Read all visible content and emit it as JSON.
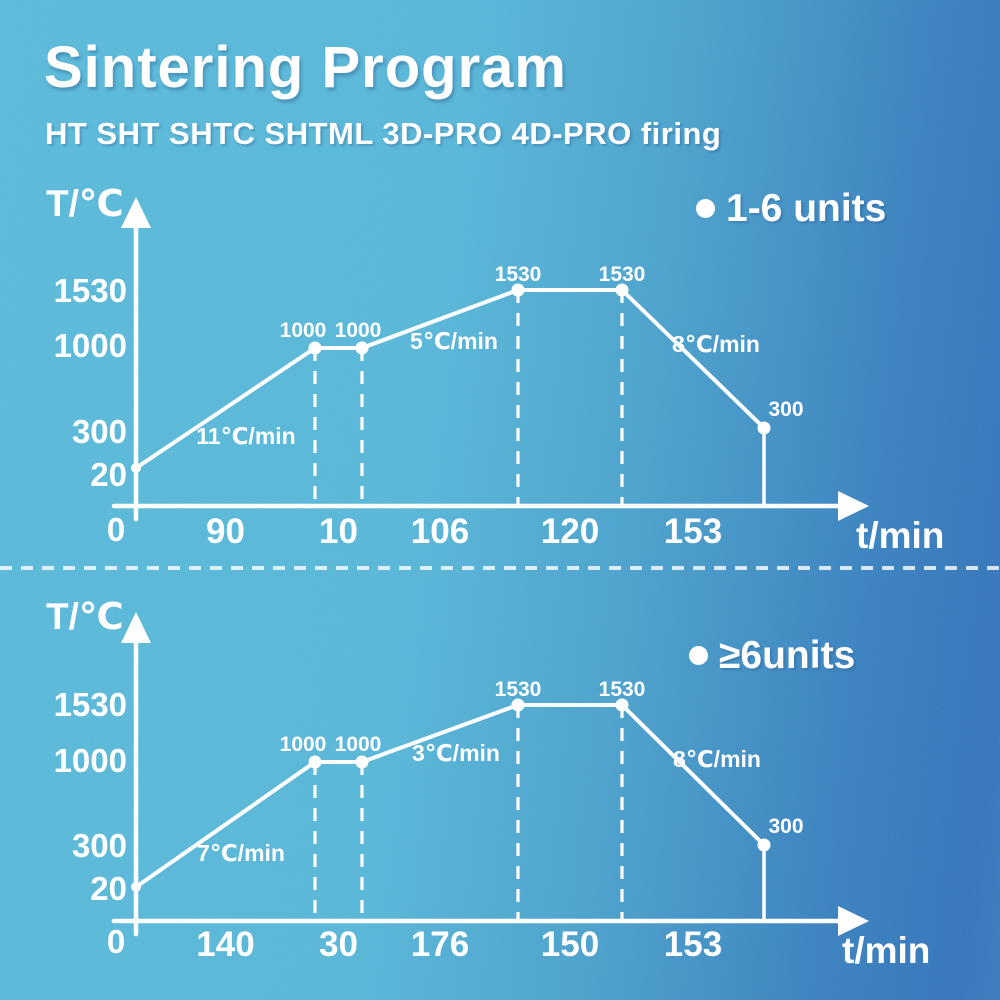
{
  "header": {
    "title": "Sintering Program",
    "subtitle": "HT SHT SHTC SHTML 3D-PRO 4D-PRO firing"
  },
  "colors": {
    "background_left": "#58B8DA",
    "background_right": "#3376BC",
    "foreground": "#FFFFFF"
  },
  "chart_data": [
    {
      "type": "line",
      "legend": "1-6 units",
      "ylabel": "T/℃",
      "xlabel": "t/min",
      "origin_label": "0",
      "y_ticks": [
        "1530",
        "1000",
        "300",
        "20"
      ],
      "start_temp_c": 20,
      "segments": [
        {
          "kind": "ramp",
          "rate": "11℃/min",
          "duration_min": 90,
          "to_temp_c": 1000
        },
        {
          "kind": "hold",
          "duration_min": 10,
          "at_temp_c": 1000
        },
        {
          "kind": "ramp",
          "rate": "5℃/min",
          "duration_min": 106,
          "to_temp_c": 1530
        },
        {
          "kind": "hold",
          "duration_min": 120,
          "at_temp_c": 1530
        },
        {
          "kind": "cool",
          "rate": "8℃/min",
          "duration_min": 153,
          "to_temp_c": 300
        }
      ],
      "point_labels": [
        "1000",
        "1000",
        "1530",
        "1530",
        "300"
      ],
      "duration_labels": [
        "90",
        "10",
        "106",
        "120",
        "153"
      ],
      "rate_labels": [
        "11℃/min",
        "5℃/min",
        "8℃/min"
      ]
    },
    {
      "type": "line",
      "legend": "≥6units",
      "ylabel": "T/℃",
      "xlabel": "t/min",
      "origin_label": "0",
      "y_ticks": [
        "1530",
        "1000",
        "300",
        "20"
      ],
      "start_temp_c": 20,
      "segments": [
        {
          "kind": "ramp",
          "rate": "7℃/min",
          "duration_min": 140,
          "to_temp_c": 1000
        },
        {
          "kind": "hold",
          "duration_min": 30,
          "at_temp_c": 1000
        },
        {
          "kind": "ramp",
          "rate": "3℃/min",
          "duration_min": 176,
          "to_temp_c": 1530
        },
        {
          "kind": "hold",
          "duration_min": 150,
          "at_temp_c": 1530
        },
        {
          "kind": "cool",
          "rate": "8℃/min",
          "duration_min": 153,
          "to_temp_c": 300
        }
      ],
      "point_labels": [
        "1000",
        "1000",
        "1530",
        "1530",
        "300"
      ],
      "duration_labels": [
        "140",
        "30",
        "176",
        "150",
        "153"
      ],
      "rate_labels": [
        "7℃/min",
        "3℃/min",
        "8℃/min"
      ]
    }
  ]
}
